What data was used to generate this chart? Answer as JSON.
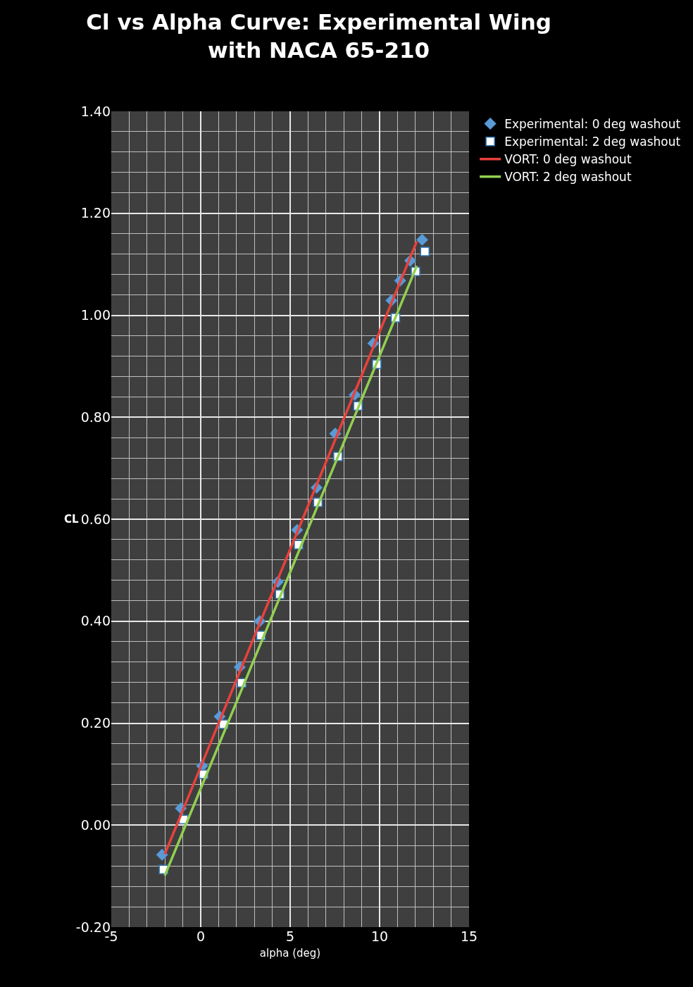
{
  "chart_data": {
    "type": "scatter",
    "title": "Cl vs Alpha Curve: Experimental Wing with NACA 65-210",
    "xlabel": "alpha (deg)",
    "ylabel": "CL",
    "series": [
      {
        "name": "Experimental: 0 deg washout",
        "marker": "diamond",
        "color": "#5b9bd5",
        "x": [
          -2.16,
          -1.11,
          0.08,
          1.06,
          2.18,
          3.3,
          4.31,
          5.39,
          6.48,
          7.52,
          8.61,
          9.65,
          10.66,
          11.15,
          11.71,
          12.38
        ],
        "values": [
          -0.058,
          0.033,
          0.116,
          0.213,
          0.31,
          0.4,
          0.477,
          0.579,
          0.662,
          0.768,
          0.844,
          0.945,
          1.029,
          1.068,
          1.107,
          1.148
        ]
      },
      {
        "name": "Experimental: 2 deg washout",
        "marker": "square",
        "color": "#ffffff",
        "x": [
          -2.08,
          -0.96,
          0.16,
          1.28,
          2.29,
          3.37,
          4.42,
          5.47,
          6.55,
          7.67,
          8.79,
          9.84,
          10.89,
          12.01,
          12.53
        ],
        "values": [
          -0.087,
          0.011,
          0.1,
          0.198,
          0.279,
          0.372,
          0.453,
          0.55,
          0.633,
          0.723,
          0.822,
          0.904,
          0.995,
          1.086,
          1.125
        ]
      },
      {
        "name": "VORT: 0 deg washout",
        "type": "line",
        "marker": "none",
        "color": "#e8413c",
        "x": [
          -2.01,
          12.08
        ],
        "values": [
          -0.057,
          1.145
        ]
      },
      {
        "name": "VORT: 2 deg washout",
        "type": "line",
        "marker": "none",
        "color": "#92d050",
        "x": [
          -2.01,
          12.08
        ],
        "values": [
          -0.099,
          1.097
        ]
      }
    ],
    "xlim": [
      -5,
      15
    ],
    "xticks": [
      -5,
      0,
      5,
      10,
      15
    ],
    "ylim": [
      -0.2,
      1.4
    ],
    "yticks": [
      {
        "value": -0.2,
        "label": "-0.20"
      },
      {
        "value": 0,
        "label": "0.00"
      },
      {
        "value": 0.2,
        "label": "0.20"
      },
      {
        "value": 0.4,
        "label": "0.40"
      },
      {
        "value": 0.6,
        "label": "0.60"
      },
      {
        "value": 0.8,
        "label": "0.80"
      },
      {
        "value": 1.0,
        "label": "1.00"
      },
      {
        "value": 1.2,
        "label": "1.20"
      },
      {
        "value": 1.4,
        "label": "1.40"
      }
    ],
    "grid": true,
    "legend": "top right"
  }
}
